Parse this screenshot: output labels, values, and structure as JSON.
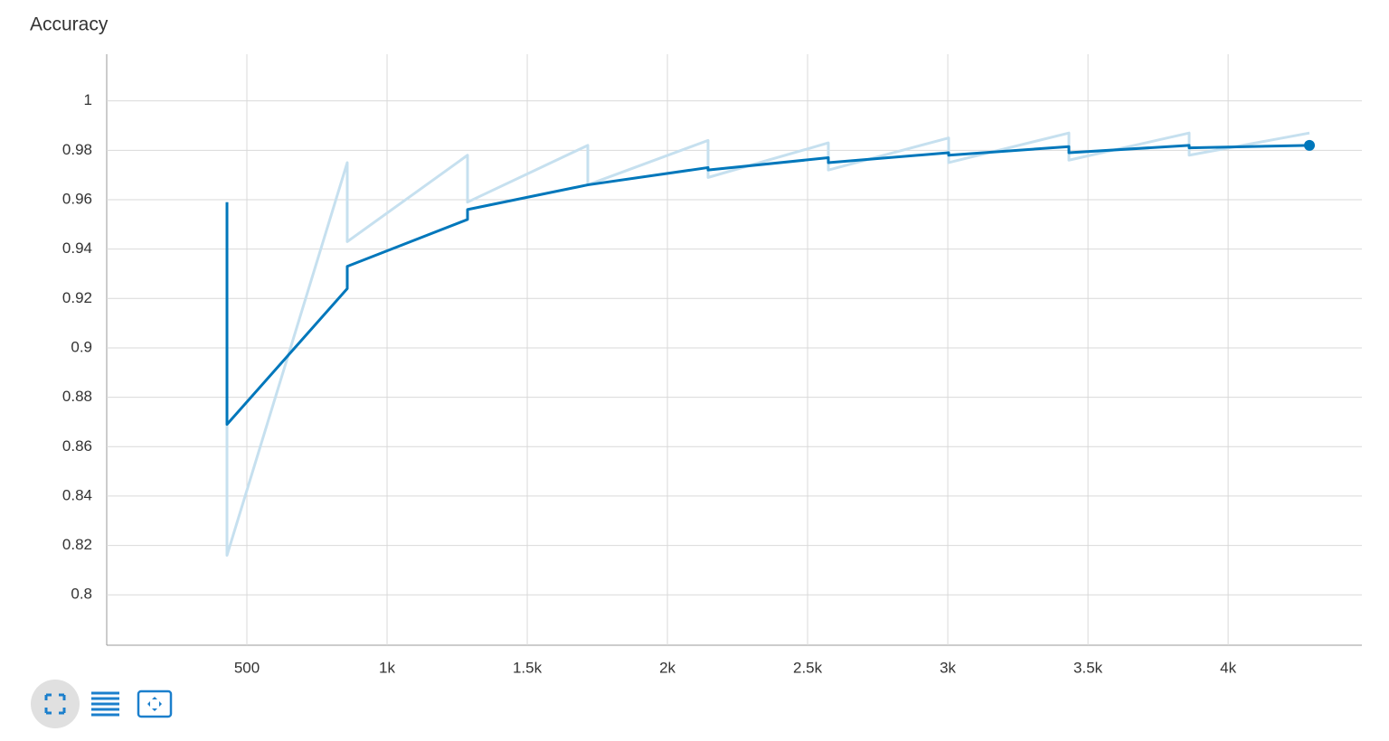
{
  "chart_data": {
    "type": "line",
    "title": "Accuracy",
    "x": [
      429,
      429,
      858,
      858,
      1287,
      1287,
      1716,
      1716,
      2145,
      2145,
      2574,
      2574,
      3003,
      3003,
      3432,
      3432,
      3861,
      3861,
      4290
    ],
    "series": [
      {
        "color": "#c6e0ef",
        "values": [
          0.959,
          0.816,
          0.975,
          0.943,
          0.978,
          0.959,
          0.982,
          0.966,
          0.984,
          0.969,
          0.983,
          0.972,
          0.985,
          0.975,
          0.987,
          0.976,
          0.987,
          0.978,
          0.987
        ]
      },
      {
        "color": "#0077bb",
        "values": [
          0.959,
          0.869,
          0.924,
          0.933,
          0.952,
          0.956,
          0.966,
          0.966,
          0.973,
          0.972,
          0.977,
          0.975,
          0.979,
          0.978,
          0.9815,
          0.979,
          0.982,
          0.981,
          0.982
        ]
      }
    ],
    "xlim": [
      0,
      4477
    ],
    "ylim": [
      0.7796,
      1.0189
    ],
    "xticks": [
      500,
      {
        "value": 1000,
        "label": "1k"
      },
      {
        "value": 1500,
        "label": "1.5k"
      },
      {
        "value": 2000,
        "label": "2k"
      },
      {
        "value": 2500,
        "label": "2.5k"
      },
      {
        "value": 3000,
        "label": "3k"
      },
      {
        "value": 3500,
        "label": "3.5k"
      },
      {
        "value": 4000,
        "label": "4k"
      }
    ],
    "yticks": [
      0.8,
      0.82,
      0.84,
      0.86,
      0.88,
      0.9,
      0.92,
      0.94,
      0.96,
      0.98,
      1
    ],
    "grid": true
  }
}
